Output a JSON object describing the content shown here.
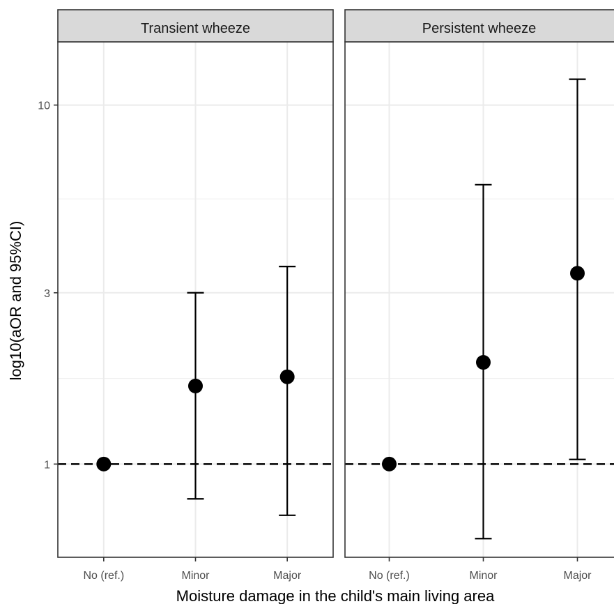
{
  "chart_data": {
    "type": "scatter",
    "subtype": "point-with-error-bars (faceted)",
    "xlabel": "Moisture damage in the child's main living area",
    "ylabel": "log10(aOR and 95%CI)",
    "y_scale": "log10",
    "ylim": [
      0.55,
      15.0
    ],
    "y_ticks": [
      1,
      3,
      10
    ],
    "y_tick_labels": [
      "1",
      "3",
      "10"
    ],
    "categories": [
      "No (ref.)",
      "Minor",
      "Major"
    ],
    "reference_line": {
      "y": 1,
      "style": "dashed"
    },
    "grid": true,
    "theme": "bw",
    "panels": [
      {
        "title": "Transient wheeze",
        "points": [
          {
            "category": "No (ref.)",
            "estimate": 1.0,
            "lower": null,
            "upper": null
          },
          {
            "category": "Minor",
            "estimate": 1.65,
            "lower": 0.8,
            "upper": 3.0
          },
          {
            "category": "Major",
            "estimate": 1.75,
            "lower": 0.72,
            "upper": 3.55
          }
        ]
      },
      {
        "title": "Persistent wheeze",
        "points": [
          {
            "category": "No (ref.)",
            "estimate": 1.0,
            "lower": null,
            "upper": null
          },
          {
            "category": "Minor",
            "estimate": 1.92,
            "lower": 0.62,
            "upper": 6.0
          },
          {
            "category": "Major",
            "estimate": 3.4,
            "lower": 1.03,
            "upper": 11.8
          }
        ]
      }
    ]
  }
}
